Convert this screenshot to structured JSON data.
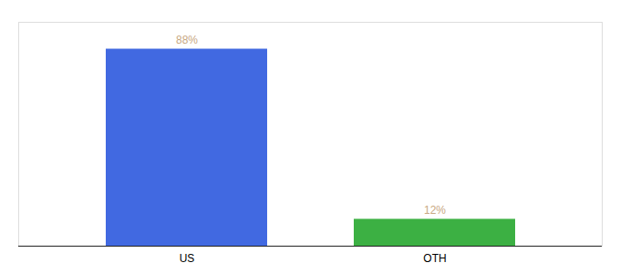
{
  "chart_data": {
    "type": "bar",
    "categories": [
      "US",
      "OTH"
    ],
    "values": [
      88,
      12
    ],
    "value_labels": [
      "88%",
      "12%"
    ],
    "colors": [
      "#4169e1",
      "#3cb043"
    ],
    "ylim": [
      0,
      100
    ],
    "data_labels": true,
    "tick_labels": "x"
  }
}
